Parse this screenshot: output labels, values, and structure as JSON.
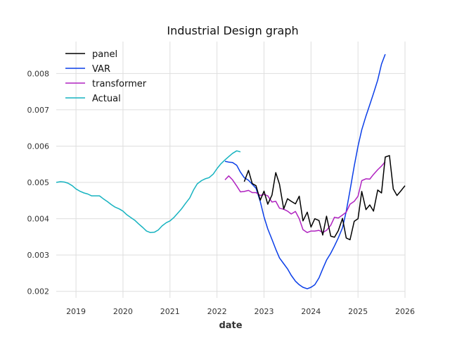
{
  "chart_data": {
    "type": "line",
    "title": "Industrial Design graph",
    "xlabel": "date",
    "ylabel": "",
    "xlim": [
      2018.58,
      2026.0
    ],
    "ylim": [
      0.00182,
      0.00888
    ],
    "grid": true,
    "legend_placement": "top-left",
    "x_ticks": [
      {
        "value": 2019,
        "label": "2019"
      },
      {
        "value": 2020,
        "label": "2020"
      },
      {
        "value": 2021,
        "label": "2021"
      },
      {
        "value": 2022,
        "label": "2022"
      },
      {
        "value": 2023,
        "label": "2023"
      },
      {
        "value": 2024,
        "label": "2024"
      },
      {
        "value": 2025,
        "label": "2025"
      },
      {
        "value": 2026,
        "label": "2026"
      }
    ],
    "y_ticks": [
      {
        "value": 0.002,
        "label": "0.002"
      },
      {
        "value": 0.003,
        "label": "0.003"
      },
      {
        "value": 0.004,
        "label": "0.004"
      },
      {
        "value": 0.005,
        "label": "0.005"
      },
      {
        "value": 0.006,
        "label": "0.006"
      },
      {
        "value": 0.007,
        "label": "0.007"
      },
      {
        "value": 0.008,
        "label": "0.008"
      }
    ],
    "series": [
      {
        "name": "panel",
        "color": "#000000",
        "x": [
          2022.58,
          2022.67,
          2022.75,
          2022.83,
          2022.92,
          2023.0,
          2023.08,
          2023.17,
          2023.25,
          2023.33,
          2023.42,
          2023.5,
          2023.58,
          2023.67,
          2023.75,
          2023.83,
          2023.92,
          2024.0,
          2024.08,
          2024.17,
          2024.25,
          2024.33,
          2024.42,
          2024.5,
          2024.58,
          2024.67,
          2024.75,
          2024.83,
          2024.92,
          2025.0,
          2025.08,
          2025.17,
          2025.25,
          2025.33,
          2025.42,
          2025.5,
          2025.58,
          2025.67,
          2025.75,
          2025.83,
          2025.92,
          2026.0
        ],
        "y": [
          0.00502,
          0.00533,
          0.00497,
          0.00491,
          0.00451,
          0.00476,
          0.0044,
          0.00465,
          0.00527,
          0.00495,
          0.00427,
          0.00455,
          0.00448,
          0.00441,
          0.00462,
          0.00394,
          0.00418,
          0.00377,
          0.004,
          0.00395,
          0.00355,
          0.00407,
          0.00352,
          0.00349,
          0.00367,
          0.00401,
          0.00347,
          0.00342,
          0.00393,
          0.004,
          0.00475,
          0.00425,
          0.00438,
          0.00421,
          0.00479,
          0.00471,
          0.0057,
          0.00574,
          0.00482,
          0.00464,
          0.00478,
          0.00491
        ]
      },
      {
        "name": "VAR",
        "color": "#0a3ee8",
        "x": [
          2022.17,
          2022.25,
          2022.33,
          2022.42,
          2022.5,
          2022.58,
          2022.67,
          2022.75,
          2022.83,
          2022.92,
          2023.0,
          2023.08,
          2023.17,
          2023.25,
          2023.33,
          2023.42,
          2023.5,
          2023.58,
          2023.67,
          2023.75,
          2023.83,
          2023.92,
          2024.0,
          2024.08,
          2024.17,
          2024.25,
          2024.33,
          2024.42,
          2024.5,
          2024.58,
          2024.67,
          2024.75,
          2024.83,
          2024.92,
          2025.0,
          2025.08,
          2025.17,
          2025.25,
          2025.33,
          2025.42,
          2025.5,
          2025.58
        ],
        "y": [
          0.00558,
          0.00556,
          0.00555,
          0.00547,
          0.00528,
          0.00513,
          0.00506,
          0.00495,
          0.00484,
          0.00448,
          0.00405,
          0.00372,
          0.00343,
          0.00316,
          0.00292,
          0.00276,
          0.00262,
          0.00244,
          0.00228,
          0.00218,
          0.00211,
          0.00207,
          0.00211,
          0.00218,
          0.00237,
          0.00262,
          0.00286,
          0.00305,
          0.00325,
          0.00347,
          0.00375,
          0.0042,
          0.00478,
          0.00545,
          0.006,
          0.00645,
          0.00683,
          0.00714,
          0.00745,
          0.00782,
          0.00826,
          0.00853
        ]
      },
      {
        "name": "transformer",
        "color": "#b023c0",
        "x": [
          2022.17,
          2022.25,
          2022.33,
          2022.42,
          2022.5,
          2022.58,
          2022.67,
          2022.75,
          2022.83,
          2022.92,
          2023.0,
          2023.08,
          2023.17,
          2023.25,
          2023.33,
          2023.42,
          2023.5,
          2023.58,
          2023.67,
          2023.75,
          2023.83,
          2023.92,
          2024.0,
          2024.08,
          2024.17,
          2024.25,
          2024.33,
          2024.42,
          2024.5,
          2024.58,
          2024.67,
          2024.75,
          2024.83,
          2024.92,
          2025.0,
          2025.08,
          2025.17,
          2025.25,
          2025.33,
          2025.42,
          2025.5,
          2025.58
        ],
        "y": [
          0.00507,
          0.00518,
          0.00507,
          0.0049,
          0.00474,
          0.00475,
          0.00478,
          0.00472,
          0.00472,
          0.00464,
          0.00467,
          0.00463,
          0.00446,
          0.00448,
          0.00429,
          0.00426,
          0.00421,
          0.00413,
          0.0042,
          0.004,
          0.0037,
          0.00362,
          0.00366,
          0.00366,
          0.00368,
          0.00362,
          0.00368,
          0.00382,
          0.00404,
          0.00402,
          0.0041,
          0.00418,
          0.0044,
          0.00448,
          0.00462,
          0.00505,
          0.0051,
          0.00509,
          0.00522,
          0.00535,
          0.00545,
          0.00557
        ]
      },
      {
        "name": "Actual",
        "color": "#17b3c0",
        "x": [
          2018.58,
          2018.67,
          2018.75,
          2018.83,
          2018.92,
          2019.0,
          2019.08,
          2019.17,
          2019.25,
          2019.33,
          2019.42,
          2019.5,
          2019.58,
          2019.67,
          2019.75,
          2019.83,
          2019.92,
          2020.0,
          2020.08,
          2020.17,
          2020.25,
          2020.33,
          2020.42,
          2020.5,
          2020.58,
          2020.67,
          2020.75,
          2020.83,
          2020.92,
          2021.0,
          2021.08,
          2021.17,
          2021.25,
          2021.33,
          2021.42,
          2021.5,
          2021.58,
          2021.67,
          2021.75,
          2021.83,
          2021.92,
          2022.0,
          2022.08,
          2022.17,
          2022.25,
          2022.33,
          2022.42,
          2022.5
        ],
        "y": [
          0.005,
          0.00502,
          0.00501,
          0.00498,
          0.00491,
          0.00482,
          0.00476,
          0.00471,
          0.00468,
          0.00463,
          0.00463,
          0.00463,
          0.00455,
          0.00447,
          0.00439,
          0.00432,
          0.00427,
          0.00421,
          0.00411,
          0.00403,
          0.00396,
          0.00386,
          0.00376,
          0.00366,
          0.00362,
          0.00363,
          0.00369,
          0.0038,
          0.00389,
          0.00394,
          0.00403,
          0.00416,
          0.00428,
          0.00442,
          0.00457,
          0.00479,
          0.00496,
          0.00505,
          0.0051,
          0.00513,
          0.00523,
          0.00538,
          0.00551,
          0.00562,
          0.00571,
          0.0058,
          0.00587,
          0.00584
        ]
      }
    ]
  }
}
